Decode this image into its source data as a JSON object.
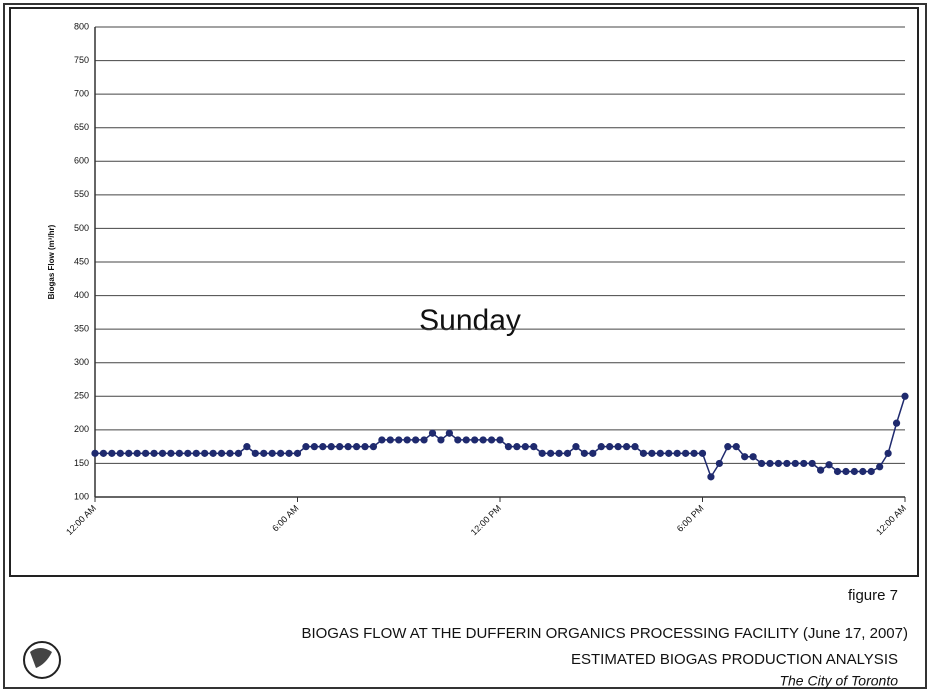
{
  "chart_data": {
    "type": "line",
    "annotation": "Sunday",
    "y_label": "Biogas Flow (m³/hr)",
    "categories": [
      "12:00 AM",
      null,
      null,
      null,
      null,
      null,
      null,
      null,
      null,
      null,
      null,
      null,
      null,
      null,
      null,
      null,
      null,
      null,
      null,
      null,
      null,
      null,
      null,
      null,
      "6:00 AM",
      null,
      null,
      null,
      null,
      null,
      null,
      null,
      null,
      null,
      null,
      null,
      null,
      null,
      null,
      null,
      null,
      null,
      null,
      null,
      null,
      null,
      null,
      null,
      "12:00 PM",
      null,
      null,
      null,
      null,
      null,
      null,
      null,
      null,
      null,
      null,
      null,
      null,
      null,
      null,
      null,
      null,
      null,
      null,
      null,
      null,
      null,
      null,
      null,
      "6:00 PM",
      null,
      null,
      null,
      null,
      null,
      null,
      null,
      null,
      null,
      null,
      null,
      null,
      null,
      null,
      null,
      null,
      null,
      null,
      null,
      null,
      null,
      null,
      null,
      "12:00 AM"
    ],
    "series": [
      {
        "name": "Biogas Flow",
        "color": "#1f2a6e",
        "values": [
          165,
          165,
          165,
          165,
          165,
          165,
          165,
          165,
          165,
          165,
          165,
          165,
          165,
          165,
          165,
          165,
          165,
          165,
          175,
          165,
          165,
          165,
          165,
          165,
          165,
          175,
          175,
          175,
          175,
          175,
          175,
          175,
          175,
          175,
          185,
          185,
          185,
          185,
          185,
          185,
          195,
          185,
          195,
          185,
          185,
          185,
          185,
          185,
          185,
          175,
          175,
          175,
          175,
          165,
          165,
          165,
          165,
          175,
          165,
          165,
          175,
          175,
          175,
          175,
          175,
          165,
          165,
          165,
          165,
          165,
          165,
          165,
          165,
          130,
          150,
          175,
          175,
          160,
          160,
          150,
          150,
          150,
          150,
          150,
          150,
          150,
          140,
          148,
          138,
          138,
          138,
          138,
          138,
          145,
          165,
          210,
          250
        ]
      }
    ],
    "ylim": [
      100,
      800
    ],
    "yticks": [
      100,
      150,
      200,
      250,
      300,
      350,
      400,
      450,
      500,
      550,
      600,
      650,
      700,
      750,
      800
    ],
    "grid": true
  },
  "footer": {
    "figure": "figure 7",
    "title": "BIOGAS FLOW AT THE DUFFERIN ORGANICS PROCESSING FACILITY (June 17, 2007)",
    "subtitle": "ESTIMATED BIOGAS PRODUCTION ANALYSIS",
    "org": "The City of Toronto"
  }
}
